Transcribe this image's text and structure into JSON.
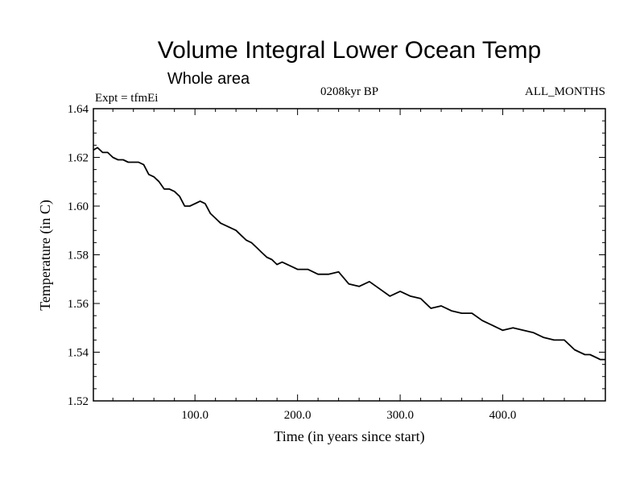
{
  "chart_data": {
    "type": "line",
    "title": "Volume Integral Lower Ocean Temp",
    "subtitle": "Whole area",
    "left_label": "Expt = tfmEi",
    "center_label": "0208kyr BP",
    "right_label": "ALL_MONTHS",
    "xlabel": "Time (in years since start)",
    "ylabel": "Temperature (in C)",
    "xlim": [
      1,
      500
    ],
    "ylim": [
      1.52,
      1.64
    ],
    "x_ticks": [
      100,
      200,
      300,
      400
    ],
    "x_tick_labels": [
      "100.0",
      "200.0",
      "300.0",
      "400.0"
    ],
    "y_ticks": [
      1.52,
      1.54,
      1.56,
      1.58,
      1.6,
      1.62,
      1.64
    ],
    "y_tick_labels": [
      "1.52",
      "1.54",
      "1.56",
      "1.58",
      "1.60",
      "1.62",
      "1.64"
    ],
    "grid": false,
    "series": [
      {
        "color": "#000000",
        "x": [
          1,
          5,
          10,
          15,
          20,
          25,
          30,
          35,
          40,
          45,
          50,
          55,
          60,
          65,
          70,
          75,
          80,
          85,
          90,
          95,
          100,
          105,
          110,
          115,
          120,
          125,
          130,
          135,
          140,
          145,
          150,
          155,
          160,
          165,
          170,
          175,
          180,
          185,
          190,
          195,
          200,
          210,
          220,
          230,
          240,
          250,
          260,
          270,
          280,
          290,
          300,
          310,
          320,
          330,
          340,
          350,
          360,
          370,
          380,
          390,
          400,
          410,
          420,
          430,
          440,
          450,
          460,
          470,
          475,
          480,
          485,
          490,
          495,
          500
        ],
        "y": [
          1.623,
          1.624,
          1.622,
          1.622,
          1.62,
          1.619,
          1.619,
          1.618,
          1.618,
          1.618,
          1.617,
          1.613,
          1.612,
          1.61,
          1.607,
          1.607,
          1.606,
          1.604,
          1.6,
          1.6,
          1.601,
          1.602,
          1.601,
          1.597,
          1.595,
          1.593,
          1.592,
          1.591,
          1.59,
          1.588,
          1.586,
          1.585,
          1.583,
          1.581,
          1.579,
          1.578,
          1.576,
          1.577,
          1.576,
          1.575,
          1.574,
          1.574,
          1.572,
          1.572,
          1.573,
          1.568,
          1.567,
          1.569,
          1.566,
          1.563,
          1.565,
          1.563,
          1.562,
          1.558,
          1.559,
          1.557,
          1.556,
          1.556,
          1.553,
          1.551,
          1.549,
          1.55,
          1.549,
          1.548,
          1.546,
          1.545,
          1.545,
          1.541,
          1.54,
          1.539,
          1.539,
          1.538,
          1.537,
          1.537
        ]
      }
    ]
  }
}
